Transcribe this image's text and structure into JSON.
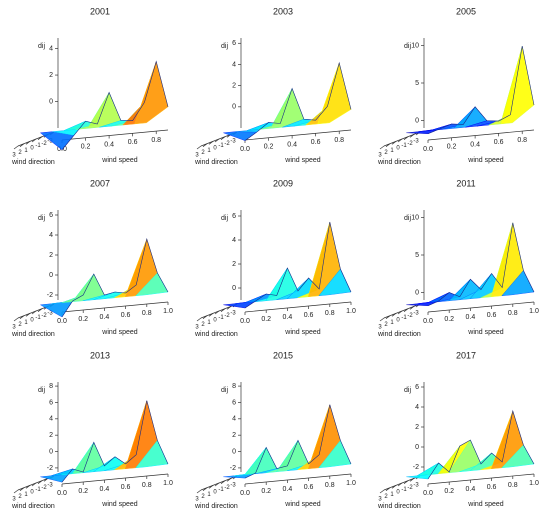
{
  "chart_data": [
    {
      "type": "surface",
      "title": "2001",
      "xlabel": "wind speed",
      "ylabel": "wind direction",
      "zlabel": "dij",
      "x": [
        0,
        0.1,
        0.2,
        0.3,
        0.4,
        0.5,
        0.6,
        0.7,
        0.8,
        0.9
      ],
      "values": [
        -1.5,
        -0.5,
        0.5,
        0.2,
        2.5,
        0.3,
        0.2,
        1.5,
        4.5,
        1
      ],
      "xlim": [
        0,
        0.9
      ],
      "xticks": [
        {
          "value": 0,
          "label": "0.0"
        },
        0.2,
        0.4,
        0.6,
        0.8
      ],
      "zlim": [
        -2,
        4.8
      ],
      "zticks": [
        0,
        2,
        4
      ],
      "yticks": [
        3,
        2,
        1,
        0,
        -1,
        -2,
        -3
      ]
    },
    {
      "type": "surface",
      "title": "2003",
      "xlabel": "wind speed",
      "ylabel": "wind direction",
      "zlabel": "dij",
      "x": [
        0,
        0.1,
        0.2,
        0.3,
        0.4,
        0.5,
        0.6,
        0.7,
        0.8,
        0.9
      ],
      "values": [
        -1,
        -0.3,
        0.5,
        0.3,
        3.5,
        0.5,
        0.3,
        1.5,
        5.5,
        1
      ],
      "xlim": [
        0,
        0.9
      ],
      "xticks": [
        {
          "value": 0,
          "label": "0.0"
        },
        0.2,
        0.4,
        0.6,
        0.8
      ],
      "zlim": [
        -2,
        6.5
      ],
      "zticks": [
        0,
        2,
        4,
        6
      ],
      "yticks": [
        3,
        2,
        1,
        0,
        -1,
        -2,
        -3
      ]
    },
    {
      "type": "surface",
      "title": "2005",
      "xlabel": "wind speed",
      "ylabel": "wind direction",
      "zlabel": "dij",
      "x": [
        0,
        0.1,
        0.2,
        0.3,
        0.4,
        0.5,
        0.6,
        0.7,
        0.8,
        0.9
      ],
      "values": [
        -0.5,
        0,
        0.5,
        0.3,
        2.5,
        0.5,
        0.3,
        1,
        10,
        2
      ],
      "xlim": [
        0,
        0.9
      ],
      "xticks": [
        {
          "value": 0,
          "label": "0.0"
        },
        0.2,
        0.4,
        0.6,
        0.8
      ],
      "zlim": [
        -1,
        11
      ],
      "zticks": [
        0,
        5,
        10
      ],
      "yticks": [
        3,
        2,
        1,
        0,
        -1,
        -2,
        -3
      ]
    },
    {
      "type": "surface",
      "title": "2007",
      "xlabel": "wind speed",
      "ylabel": "wind direction",
      "zlabel": "dij",
      "x": [
        0,
        0.1,
        0.2,
        0.3,
        0.4,
        0.5,
        0.6,
        0.7,
        0.8,
        0.9,
        1.0
      ],
      "values": [
        -1.5,
        0,
        0.5,
        2.5,
        0.3,
        0.5,
        0.3,
        1,
        5.5,
        2,
        0
      ],
      "xlim": [
        0,
        1
      ],
      "xticks": [
        {
          "value": 0,
          "label": "0.0"
        },
        0.2,
        0.4,
        0.6,
        0.8,
        {
          "value": 1,
          "label": "1.0"
        }
      ],
      "zlim": [
        -2.5,
        6.5
      ],
      "zticks": [
        -2,
        0,
        2,
        4,
        6
      ],
      "yticks": [
        3,
        2,
        1,
        0,
        -1,
        -2,
        -3
      ]
    },
    {
      "type": "surface",
      "title": "2009",
      "xlabel": "wind speed",
      "ylabel": "wind direction",
      "zlabel": "dij",
      "x": [
        0,
        0.1,
        0.2,
        0.3,
        0.4,
        0.5,
        0.6,
        0.7,
        0.8,
        0.9,
        1.0
      ],
      "values": [
        -0.5,
        0,
        0.5,
        0.3,
        2.5,
        0.5,
        1.5,
        0.5,
        6,
        2,
        0
      ],
      "xlim": [
        0,
        1
      ],
      "xticks": [
        {
          "value": 0,
          "label": "0.0"
        },
        0.2,
        0.4,
        0.6,
        0.8,
        {
          "value": 1,
          "label": "1.0"
        }
      ],
      "zlim": [
        -1,
        6.5
      ],
      "zticks": [
        0,
        2,
        4,
        6
      ],
      "yticks": [
        3,
        2,
        1,
        0,
        -1,
        -2,
        -3
      ]
    },
    {
      "type": "surface",
      "title": "2011",
      "xlabel": "wind speed",
      "ylabel": "wind direction",
      "zlabel": "dij",
      "x": [
        0,
        0.1,
        0.2,
        0.3,
        0.4,
        0.5,
        0.6,
        0.7,
        0.8,
        0.9,
        1.0
      ],
      "values": [
        -0.5,
        0,
        1,
        0.3,
        2.5,
        1,
        3,
        1,
        9.5,
        3,
        0
      ],
      "xlim": [
        0,
        1
      ],
      "xticks": [
        {
          "value": 0,
          "label": "0.0"
        },
        0.2,
        0.4,
        0.6,
        0.8,
        {
          "value": 1,
          "label": "1.0"
        }
      ],
      "zlim": [
        -1,
        11
      ],
      "zticks": [
        0,
        5,
        10
      ],
      "yticks": [
        3,
        2,
        1,
        0,
        -1,
        -2,
        -3
      ]
    },
    {
      "type": "surface",
      "title": "2013",
      "xlabel": "wind speed",
      "ylabel": "wind direction",
      "zlabel": "dij",
      "x": [
        0,
        0.1,
        0.2,
        0.3,
        0.4,
        0.5,
        0.6,
        0.7,
        0.8,
        0.9,
        1.0
      ],
      "values": [
        -1,
        0.5,
        0,
        3.5,
        0.5,
        1.5,
        0.5,
        1.5,
        8,
        3,
        0
      ],
      "xlim": [
        0,
        1
      ],
      "xticks": [
        {
          "value": 0,
          "label": "0.0"
        },
        0.2,
        0.4,
        0.6,
        0.8,
        {
          "value": 1,
          "label": "1.0"
        }
      ],
      "zlim": [
        -2.5,
        8.5
      ],
      "zticks": [
        -2,
        0,
        2,
        4,
        6,
        8
      ],
      "yticks": [
        3,
        2,
        1,
        0,
        -1,
        -2,
        -3
      ]
    },
    {
      "type": "surface",
      "title": "2015",
      "xlabel": "wind speed",
      "ylabel": "wind direction",
      "zlabel": "dij",
      "x": [
        0,
        0.1,
        0.2,
        0.3,
        0.4,
        0.5,
        0.6,
        0.7,
        0.8,
        0.9,
        1.0
      ],
      "values": [
        -0.5,
        0,
        3,
        0.3,
        0.5,
        3.5,
        0.5,
        1.5,
        7.5,
        3,
        0
      ],
      "xlim": [
        0,
        1
      ],
      "xticks": [
        {
          "value": 0,
          "label": "0.0"
        },
        0.2,
        0.4,
        0.6,
        0.8,
        {
          "value": 1,
          "label": "1.0"
        }
      ],
      "zlim": [
        -2.5,
        8.5
      ],
      "zticks": [
        -2,
        0,
        2,
        4,
        6,
        8
      ],
      "yticks": [
        3,
        2,
        1,
        0,
        -1,
        -2,
        -3
      ]
    },
    {
      "type": "surface",
      "title": "2017",
      "xlabel": "wind speed",
      "ylabel": "wind direction",
      "zlabel": "dij",
      "x": [
        0,
        0.1,
        0.2,
        0.3,
        0.4,
        0.5,
        0.6,
        0.7,
        0.8,
        0.9,
        1.0
      ],
      "values": [
        -0.5,
        1,
        0,
        2.5,
        3,
        0.5,
        1.5,
        0.5,
        5.5,
        2,
        0
      ],
      "xlim": [
        0,
        1
      ],
      "xticks": [
        {
          "value": 0,
          "label": "0.0"
        },
        0.2,
        0.4,
        0.6,
        0.8,
        {
          "value": 1,
          "label": "1.0"
        }
      ],
      "zlim": [
        -2.5,
        6.5
      ],
      "zticks": [
        -2,
        0,
        2,
        4,
        6
      ],
      "yticks": [
        3,
        2,
        1,
        0,
        -1,
        -2,
        -3
      ]
    }
  ]
}
